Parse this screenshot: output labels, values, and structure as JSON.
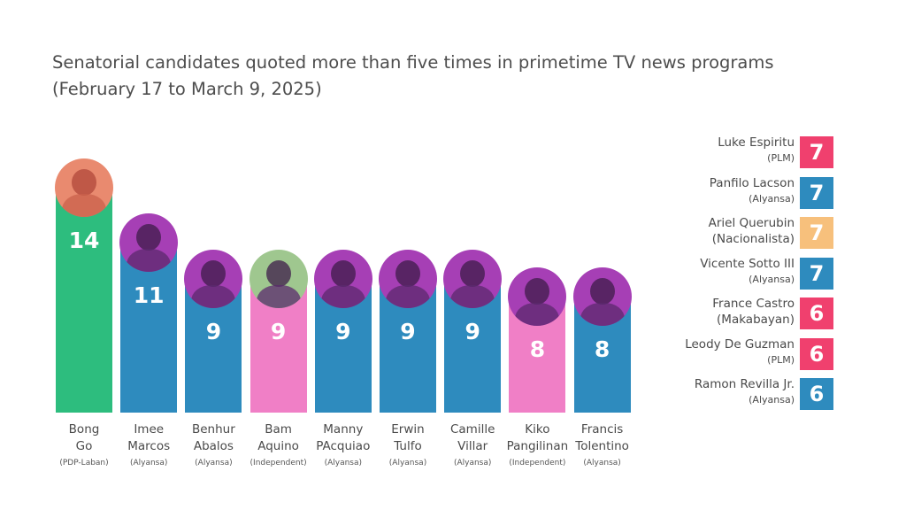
{
  "title_line1": "Senatorial candidates quoted more than five times in primetime TV news programs",
  "title_line2": "(February 17 to March 9, 2025)",
  "colors": {
    "PDP-Laban": "#2dbd7e",
    "Alyansa": "#2e8bbe",
    "Independent": "#f07fc6",
    "PLM": "#f0406e",
    "Nacionalista": "#f7c07c",
    "Makabayan": "#f0406e",
    "photo_tint": "#a63fb5"
  },
  "chart_data": {
    "type": "bar",
    "categories": [
      "Bong Go",
      "Imee Marcos",
      "Benhur Abalos",
      "Bam Aquino",
      "Manny PAcquiao",
      "Erwin Tulfo",
      "Camille Villar",
      "Kiko Pangilinan",
      "Francis Tolentino"
    ],
    "name_lines": [
      [
        "Bong",
        "Go"
      ],
      [
        "Imee",
        "Marcos"
      ],
      [
        "Benhur",
        "Abalos"
      ],
      [
        "Bam",
        "Aquino"
      ],
      [
        "Manny",
        "PAcquiao"
      ],
      [
        "Erwin",
        "Tulfo"
      ],
      [
        "Camille",
        "Villar"
      ],
      [
        "Kiko",
        "Pangilinan"
      ],
      [
        "Francis",
        "Tolentino"
      ]
    ],
    "parties": [
      "PDP-Laban",
      "Alyansa",
      "Alyansa",
      "Independent",
      "Alyansa",
      "Alyansa",
      "Alyansa",
      "Independent",
      "Alyansa"
    ],
    "values": [
      14,
      11,
      9,
      9,
      9,
      9,
      9,
      8,
      8
    ],
    "ylim": [
      0,
      14
    ],
    "grid": false
  },
  "side_list": [
    {
      "name": "Luke Espiritu",
      "party": "(PLM)",
      "party_key": "PLM",
      "value": "7"
    },
    {
      "name": "Panfilo Lacson",
      "party": "(Alyansa)",
      "party_key": "Alyansa",
      "value": "7"
    },
    {
      "name": "Ariel Querubin",
      "party": "(Nacionalista)",
      "party_key": "Nacionalista",
      "value": "7"
    },
    {
      "name": "Vicente Sotto III",
      "party": "(Alyansa)",
      "party_key": "Alyansa",
      "value": "7"
    },
    {
      "name": "France Castro",
      "party": "(Makabayan)",
      "party_key": "Makabayan",
      "value": "6"
    },
    {
      "name": "Leody De Guzman",
      "party": "(PLM)",
      "party_key": "PLM",
      "value": "6"
    },
    {
      "name": "Ramon Revilla Jr.",
      "party": "(Alyansa)",
      "party_key": "Alyansa",
      "value": "6"
    }
  ]
}
